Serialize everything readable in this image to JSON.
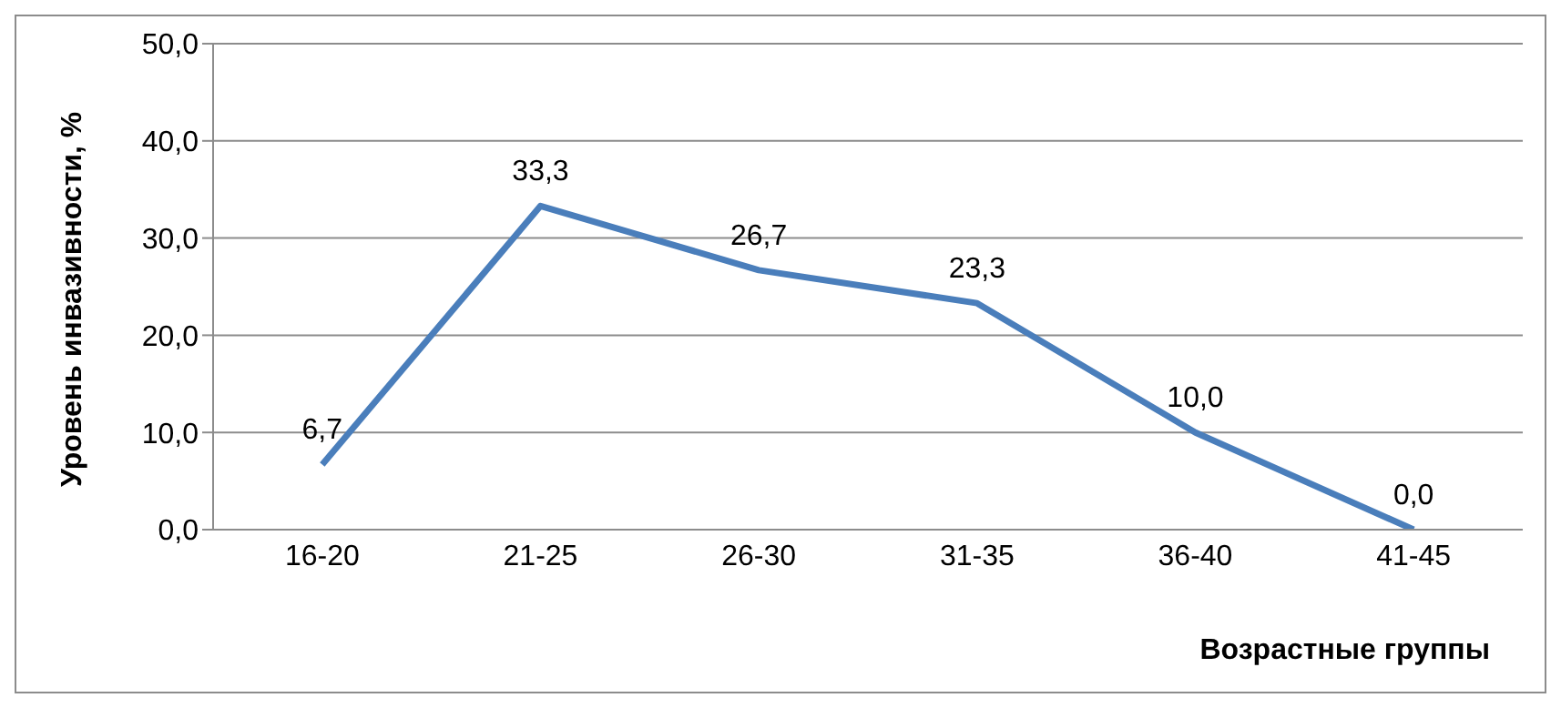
{
  "chart_data": {
    "type": "line",
    "xlabel": "Возрастные группы",
    "ylabel": "Уровень инвазивности, %",
    "categories": [
      "16-20",
      "21-25",
      "26-30",
      "31-35",
      "36-40",
      "41-45"
    ],
    "series": [
      {
        "color": "#4a7ebb",
        "values": [
          6.7,
          33.3,
          26.7,
          23.3,
          10.0,
          0.0
        ],
        "value_labels": [
          "6,7",
          "33,3",
          "26,7",
          "23,3",
          "10,0",
          "0,0"
        ]
      }
    ],
    "ylim": [
      0,
      50
    ],
    "yticks": [
      {
        "value": 0,
        "label": "0,0"
      },
      {
        "value": 10,
        "label": "10,0"
      },
      {
        "value": 20,
        "label": "20,0"
      },
      {
        "value": 30,
        "label": "30,0"
      },
      {
        "value": 40,
        "label": "40,0"
      },
      {
        "value": 50,
        "label": "50,0"
      }
    ],
    "grid": "y",
    "legend": false,
    "marker": "none",
    "line_style": "solid"
  }
}
